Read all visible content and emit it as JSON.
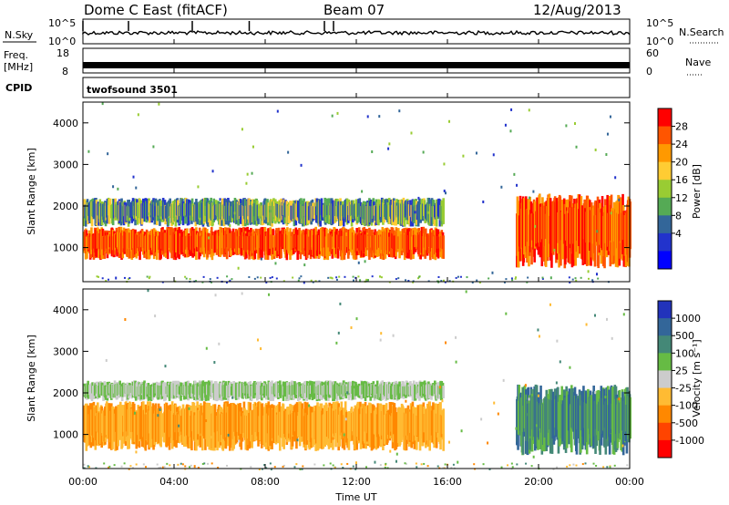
{
  "header": {
    "station": "Dome C East (fitACF)",
    "beam": "Beam 07",
    "date": "12/Aug/2013"
  },
  "top_panels": {
    "nsky_label": "N.Sky",
    "nsearch_label": "N.Search",
    "nsky_ticks": [
      "10^5",
      "10^0"
    ],
    "nsearch_ticks": [
      "10^5",
      "10^0"
    ],
    "freq_label_1": "Freq.",
    "freq_label_2": "[MHz]",
    "freq_ticks": [
      "18",
      "8"
    ],
    "nave_label": "Nave",
    "nave_ticks": [
      "60",
      "0"
    ],
    "cpid_label": "CPID",
    "cpid_name": "twofsound 3501"
  },
  "chart_data": [
    {
      "type": "heatmap",
      "title": "",
      "ylabel": "Slant Range [km]",
      "xlabel": "",
      "ylim": [
        180,
        4500
      ],
      "xlim": [
        0,
        24
      ],
      "yticks": [
        "4000",
        "3000",
        "2000",
        "1000"
      ],
      "colorbar": {
        "label": "Power [dB]",
        "ticks": [
          "28",
          "24",
          "20",
          "16",
          "12",
          "8",
          "4"
        ],
        "colors": [
          "#ff0000",
          "#ff5500",
          "#ff9900",
          "#ffcc33",
          "#99cc33",
          "#55aa55",
          "#336699",
          "#2233cc",
          "#0000ff"
        ]
      },
      "features": [
        {
          "time_start": 0,
          "time_end": 15.8,
          "range_low": 700,
          "range_high": 1500,
          "value_db": 28
        },
        {
          "time_start": 0,
          "time_end": 15.8,
          "range_low": 1500,
          "range_high": 2200,
          "value_db": 14
        },
        {
          "time_start": 19,
          "time_end": 24,
          "range_low": 500,
          "range_high": 2300,
          "value_db": 24
        }
      ]
    },
    {
      "type": "heatmap",
      "title": "",
      "ylabel": "Slant Range [km]",
      "xlabel": "Time UT",
      "ylim": [
        180,
        4500
      ],
      "xlim": [
        0,
        24
      ],
      "yticks": [
        "4000",
        "3000",
        "2000",
        "1000"
      ],
      "xticks": [
        "00:00",
        "04:00",
        "08:00",
        "12:00",
        "16:00",
        "20:00",
        "00:00"
      ],
      "colorbar": {
        "label": "Velocity [m s⁻¹]",
        "ticks": [
          "1000",
          "500",
          "100",
          "25",
          "-25",
          "-100",
          "-500",
          "-1000"
        ],
        "colors": [
          "#2233bb",
          "#336699",
          "#448877",
          "#66bb44",
          "#cccccc",
          "#ffbb33",
          "#ff8800",
          "#ff4400",
          "#ff0000"
        ]
      },
      "features": [
        {
          "time_start": 0,
          "time_end": 15.8,
          "range_low": 600,
          "range_high": 1800,
          "velocity": -100
        },
        {
          "time_start": 0,
          "time_end": 15.8,
          "range_low": 1800,
          "range_high": 2300,
          "velocity": 0
        },
        {
          "time_start": 19,
          "time_end": 24,
          "range_low": 500,
          "range_high": 2200,
          "velocity": 100
        }
      ]
    }
  ],
  "colors": {
    "axis": "#000000",
    "power_scheme": "red-high",
    "velocity_scheme": "blue-positive"
  }
}
